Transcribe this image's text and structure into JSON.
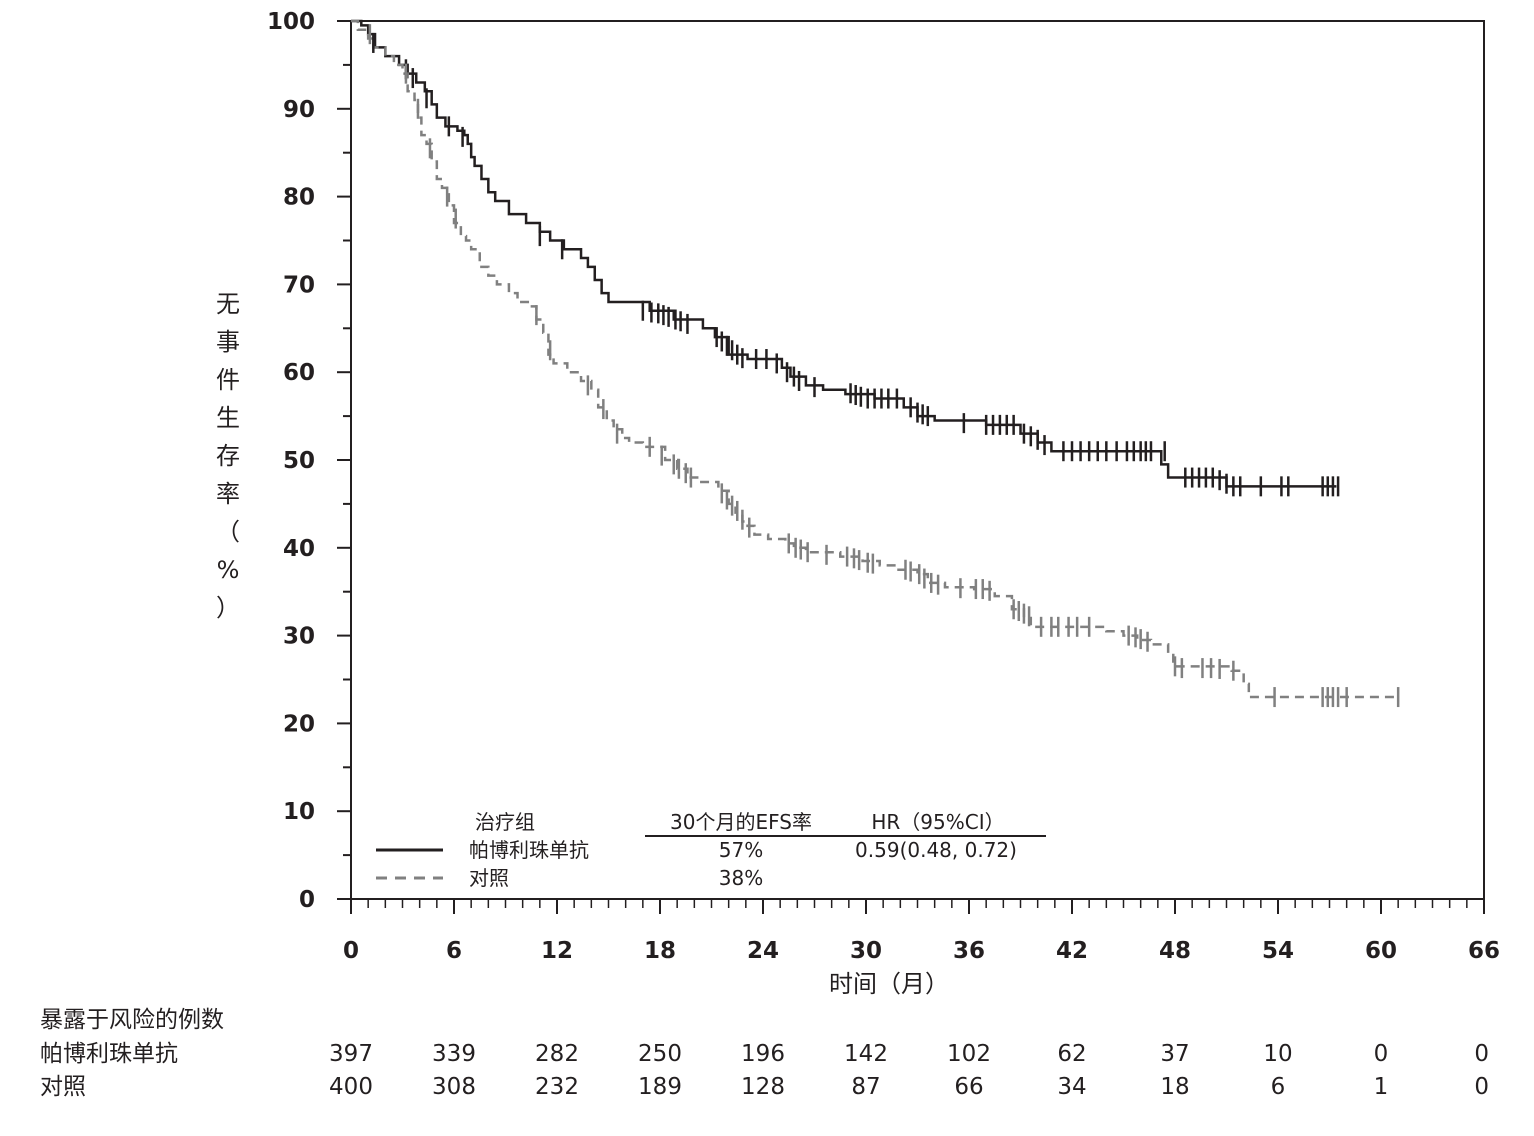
{
  "chart_data": {
    "type": "line",
    "subtype": "kaplan-meier",
    "xlabel": "时间（月）",
    "ylabel": "无事件生存率（%）",
    "xlim": [
      0,
      66
    ],
    "ylim": [
      0,
      100
    ],
    "xticks": [
      0,
      6,
      12,
      18,
      24,
      30,
      36,
      42,
      48,
      54,
      60,
      66
    ],
    "yticks": [
      0,
      10,
      20,
      30,
      40,
      50,
      60,
      70,
      80,
      90,
      100
    ],
    "x_minor_step": 1,
    "y_minor_step": 5,
    "grid": false,
    "legend": {
      "placement": "bottom-left",
      "headers": [
        "治疗组",
        "30个月的EFS率",
        "HR（95%CI）"
      ],
      "rows": [
        {
          "series": "帕博利珠单抗",
          "efs30": "57%",
          "hr": "0.59(0.48, 0.72)"
        },
        {
          "series": "对照",
          "efs30": "38%",
          "hr": ""
        }
      ]
    },
    "series": [
      {
        "name": "帕博利珠单抗",
        "color": "#231f20",
        "line_style": "solid",
        "points": [
          [
            0,
            100
          ],
          [
            0.6,
            99.5
          ],
          [
            1,
            98.5
          ],
          [
            1.4,
            97
          ],
          [
            2,
            96
          ],
          [
            2.8,
            95
          ],
          [
            3.3,
            94
          ],
          [
            3.8,
            93
          ],
          [
            4.3,
            92
          ],
          [
            4.7,
            90.5
          ],
          [
            5,
            89
          ],
          [
            5.5,
            88
          ],
          [
            6.2,
            87.5
          ],
          [
            6.6,
            87
          ],
          [
            6.8,
            86
          ],
          [
            7,
            84.5
          ],
          [
            7.2,
            83.5
          ],
          [
            7.6,
            82
          ],
          [
            8,
            80.5
          ],
          [
            8.4,
            79.5
          ],
          [
            9.2,
            78
          ],
          [
            10.2,
            77
          ],
          [
            11,
            76
          ],
          [
            11.6,
            75
          ],
          [
            12.4,
            74
          ],
          [
            13.4,
            73
          ],
          [
            13.8,
            72
          ],
          [
            14.2,
            70.5
          ],
          [
            14.6,
            69
          ],
          [
            15,
            68
          ],
          [
            17.4,
            67
          ],
          [
            18.8,
            66
          ],
          [
            20.5,
            65
          ],
          [
            21.2,
            64
          ],
          [
            22,
            62
          ],
          [
            23.1,
            61.5
          ],
          [
            25.1,
            60.5
          ],
          [
            25.6,
            59.5
          ],
          [
            26.5,
            58.5
          ],
          [
            27.5,
            58
          ],
          [
            28.8,
            57.5
          ],
          [
            30.5,
            57
          ],
          [
            32.2,
            56
          ],
          [
            33,
            55
          ],
          [
            34,
            54.5
          ],
          [
            37,
            54
          ],
          [
            39,
            53
          ],
          [
            40,
            52
          ],
          [
            40.8,
            51
          ],
          [
            47.2,
            49.5
          ],
          [
            47.6,
            48
          ],
          [
            51,
            47
          ],
          [
            57.4,
            47
          ]
        ],
        "censors": [
          [
            1.3,
            97.5
          ],
          [
            3.2,
            94.5
          ],
          [
            3.6,
            93.5
          ],
          [
            4.4,
            91.2
          ],
          [
            5.7,
            88
          ],
          [
            6.5,
            86.8
          ],
          [
            11,
            75.5
          ],
          [
            12.3,
            74
          ],
          [
            17,
            67
          ],
          [
            17.5,
            66.8
          ],
          [
            17.9,
            66.7
          ],
          [
            18.2,
            66.5
          ],
          [
            18.5,
            66.3
          ],
          [
            18.9,
            66
          ],
          [
            19.2,
            65.8
          ],
          [
            19.6,
            65.5
          ],
          [
            21.3,
            64
          ],
          [
            21.6,
            63.5
          ],
          [
            21.9,
            63
          ],
          [
            22.2,
            62.5
          ],
          [
            22.5,
            62
          ],
          [
            22.8,
            61.6
          ],
          [
            23.6,
            61.5
          ],
          [
            24.2,
            61.5
          ],
          [
            24.8,
            61
          ],
          [
            25.4,
            60
          ],
          [
            25.8,
            59.5
          ],
          [
            26.1,
            59
          ],
          [
            27,
            58.3
          ],
          [
            29.1,
            57.6
          ],
          [
            29.4,
            57.4
          ],
          [
            29.7,
            57.2
          ],
          [
            30.1,
            57
          ],
          [
            30.5,
            57
          ],
          [
            30.9,
            57
          ],
          [
            31.3,
            57
          ],
          [
            31.8,
            57
          ],
          [
            32.6,
            56
          ],
          [
            33,
            55.4
          ],
          [
            33.3,
            55.2
          ],
          [
            33.6,
            55
          ],
          [
            35.7,
            54.2
          ],
          [
            37,
            54
          ],
          [
            37.4,
            54
          ],
          [
            37.8,
            54
          ],
          [
            38.2,
            54
          ],
          [
            38.6,
            54
          ],
          [
            39.2,
            53
          ],
          [
            39.6,
            52.7
          ],
          [
            40,
            52.3
          ],
          [
            40.4,
            51.7
          ],
          [
            41.5,
            51
          ],
          [
            42,
            51
          ],
          [
            42.5,
            51
          ],
          [
            43,
            51
          ],
          [
            43.5,
            51
          ],
          [
            44,
            51
          ],
          [
            44.6,
            51
          ],
          [
            45.2,
            51
          ],
          [
            45.6,
            51
          ],
          [
            46,
            51
          ],
          [
            46.3,
            51
          ],
          [
            46.6,
            51
          ],
          [
            47.4,
            51
          ],
          [
            48.6,
            48
          ],
          [
            49,
            48
          ],
          [
            49.4,
            48
          ],
          [
            49.8,
            48
          ],
          [
            50.2,
            48
          ],
          [
            50.6,
            47.7
          ],
          [
            51,
            47.3
          ],
          [
            51.4,
            47
          ],
          [
            51.8,
            47
          ],
          [
            53,
            47
          ],
          [
            54.2,
            47
          ],
          [
            54.6,
            47
          ],
          [
            56.6,
            47
          ],
          [
            56.9,
            47
          ],
          [
            57.2,
            47
          ],
          [
            57.5,
            47
          ]
        ]
      },
      {
        "name": "对照",
        "color": "#808080",
        "line_style": "dashed",
        "points": [
          [
            0,
            100
          ],
          [
            0.4,
            99
          ],
          [
            1,
            98
          ],
          [
            1.3,
            97
          ],
          [
            2,
            96
          ],
          [
            2.5,
            95
          ],
          [
            3,
            94
          ],
          [
            3.3,
            92
          ],
          [
            3.7,
            91
          ],
          [
            3.9,
            89
          ],
          [
            4.1,
            87
          ],
          [
            4.4,
            86
          ],
          [
            4.7,
            84
          ],
          [
            5,
            82
          ],
          [
            5.3,
            81
          ],
          [
            5.7,
            79
          ],
          [
            6,
            77
          ],
          [
            6.4,
            75.5
          ],
          [
            6.7,
            75
          ],
          [
            7,
            74
          ],
          [
            7.5,
            72
          ],
          [
            8,
            71
          ],
          [
            8.5,
            70
          ],
          [
            9.2,
            69
          ],
          [
            9.7,
            68
          ],
          [
            10.4,
            67.5
          ],
          [
            10.8,
            66
          ],
          [
            11.2,
            64.5
          ],
          [
            11.5,
            62
          ],
          [
            11.8,
            61
          ],
          [
            12.6,
            60
          ],
          [
            13.4,
            59
          ],
          [
            14,
            58
          ],
          [
            14.4,
            56
          ],
          [
            14.9,
            54.5
          ],
          [
            15.3,
            53.5
          ],
          [
            15.8,
            52.5
          ],
          [
            16.2,
            52
          ],
          [
            17,
            51.5
          ],
          [
            18.3,
            50
          ],
          [
            19,
            49
          ],
          [
            19.6,
            48
          ],
          [
            20.3,
            47.5
          ],
          [
            21.4,
            46.5
          ],
          [
            22,
            45
          ],
          [
            22.4,
            44
          ],
          [
            22.8,
            43
          ],
          [
            23.1,
            42.5
          ],
          [
            23.5,
            41.5
          ],
          [
            24.3,
            41
          ],
          [
            25.3,
            40.5
          ],
          [
            25.8,
            40
          ],
          [
            26.5,
            39.5
          ],
          [
            28.5,
            39
          ],
          [
            29.8,
            38.5
          ],
          [
            30.8,
            38
          ],
          [
            31.8,
            37.5
          ],
          [
            33,
            37
          ],
          [
            33.6,
            36
          ],
          [
            34.6,
            35.5
          ],
          [
            36.3,
            35.3
          ],
          [
            37.5,
            34.5
          ],
          [
            38.5,
            33
          ],
          [
            39.2,
            32
          ],
          [
            39.6,
            31
          ],
          [
            44,
            30.5
          ],
          [
            45,
            30
          ],
          [
            45.8,
            29.5
          ],
          [
            46.6,
            29
          ],
          [
            47.6,
            28
          ],
          [
            47.9,
            26.5
          ],
          [
            51.3,
            26
          ],
          [
            52,
            24.5
          ],
          [
            52.3,
            23
          ],
          [
            61,
            23
          ]
        ],
        "censors": [
          [
            1.1,
            98.5
          ],
          [
            3.2,
            94
          ],
          [
            3.9,
            90
          ],
          [
            4.6,
            85.5
          ],
          [
            5.6,
            80
          ],
          [
            6.1,
            77.5
          ],
          [
            10.8,
            66.5
          ],
          [
            11.6,
            62.5
          ],
          [
            13.8,
            58.5
          ],
          [
            14.7,
            55.8
          ],
          [
            15.5,
            53
          ],
          [
            17.4,
            51.5
          ],
          [
            18.1,
            50.5
          ],
          [
            18.8,
            49.5
          ],
          [
            19.1,
            49
          ],
          [
            19.5,
            48.5
          ],
          [
            19.8,
            48
          ],
          [
            21.6,
            46.2
          ],
          [
            21.9,
            45.5
          ],
          [
            22.2,
            44.8
          ],
          [
            22.5,
            44.2
          ],
          [
            22.8,
            43.2
          ],
          [
            23.2,
            42.3
          ],
          [
            25.5,
            40.5
          ],
          [
            25.9,
            40
          ],
          [
            26.2,
            39.8
          ],
          [
            26.6,
            39.5
          ],
          [
            27.7,
            39.2
          ],
          [
            28.9,
            39
          ],
          [
            29.3,
            38.8
          ],
          [
            29.6,
            38.6
          ],
          [
            30.1,
            38.3
          ],
          [
            30.4,
            38.2
          ],
          [
            32.3,
            37.5
          ],
          [
            32.6,
            37.3
          ],
          [
            33.1,
            37
          ],
          [
            33.4,
            36.5
          ],
          [
            33.8,
            36
          ],
          [
            34.2,
            35.8
          ],
          [
            35.5,
            35.4
          ],
          [
            36.4,
            35.3
          ],
          [
            36.8,
            35.3
          ],
          [
            37.2,
            35.1
          ],
          [
            38.6,
            33
          ],
          [
            38.9,
            32.8
          ],
          [
            39.2,
            32.5
          ],
          [
            39.5,
            32.2
          ],
          [
            40.2,
            31
          ],
          [
            40.8,
            31
          ],
          [
            41.2,
            31
          ],
          [
            41.8,
            31
          ],
          [
            42.3,
            31
          ],
          [
            43,
            31
          ],
          [
            45.3,
            30
          ],
          [
            45.7,
            29.8
          ],
          [
            46,
            29.6
          ],
          [
            46.4,
            29.3
          ],
          [
            48,
            26.5
          ],
          [
            48.4,
            26.3
          ],
          [
            49.6,
            26.3
          ],
          [
            50.1,
            26.3
          ],
          [
            50.6,
            26.2
          ],
          [
            51.4,
            26
          ],
          [
            53.8,
            23
          ],
          [
            56.6,
            23
          ],
          [
            56.9,
            23
          ],
          [
            57.2,
            23
          ],
          [
            57.5,
            23
          ],
          [
            58,
            23
          ],
          [
            61,
            23
          ]
        ]
      }
    ],
    "risk_table": {
      "title": "暴露于风险的例数",
      "times": [
        0,
        6,
        12,
        18,
        24,
        30,
        36,
        42,
        48,
        54,
        60,
        66
      ],
      "rows": [
        {
          "label": "帕博利珠单抗",
          "values": [
            "397",
            "339",
            "282",
            "250",
            "196",
            "142",
            "102",
            "62",
            "37",
            "10",
            "0",
            "0"
          ]
        },
        {
          "label": "对照",
          "values": [
            "400",
            "308",
            "232",
            "189",
            "128",
            "87",
            "66",
            "34",
            "18",
            "6",
            "1",
            "0"
          ]
        }
      ]
    }
  }
}
